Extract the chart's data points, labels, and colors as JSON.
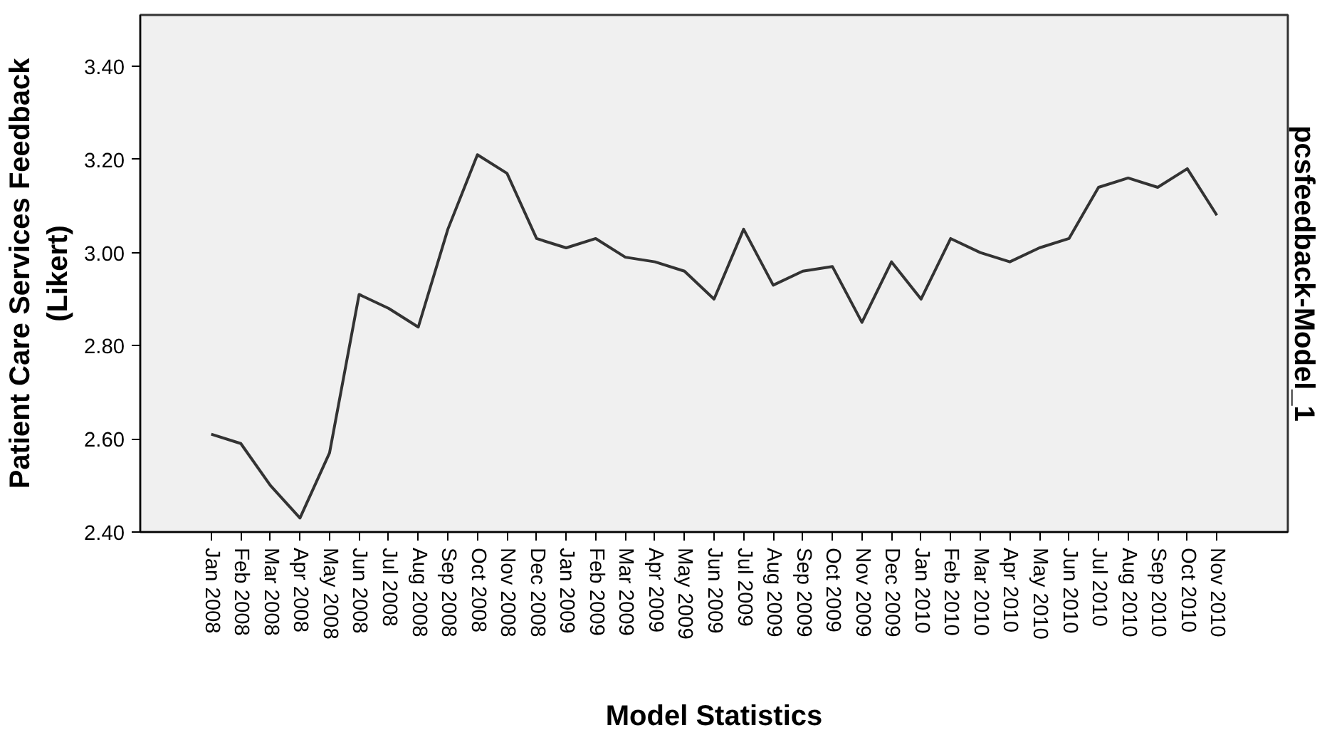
{
  "chart_data": {
    "type": "line",
    "xlabel": "Model Statistics",
    "ylabel": "Patient Care Services Feedback\n(Likert)",
    "y2label": "pcsfeedback-Model_1",
    "categories": [
      "Jan 2008",
      "Feb 2008",
      "Mar 2008",
      "Apr 2008",
      "May 2008",
      "Jun 2008",
      "Jul 2008",
      "Aug 2008",
      "Sep 2008",
      "Oct 2008",
      "Nov 2008",
      "Dec 2008",
      "Jan 2009",
      "Feb 2009",
      "Mar 2009",
      "Apr 2009",
      "May 2009",
      "Jun 2009",
      "Jul 2009",
      "Aug 2009",
      "Sep 2009",
      "Oct 2009",
      "Nov 2009",
      "Dec 2009",
      "Jan 2010",
      "Feb 2010",
      "Mar 2010",
      "Apr 2010",
      "May 2010",
      "Jun 2010",
      "Jul 2010",
      "Aug 2010",
      "Sep 2010",
      "Oct 2010",
      "Nov 2010"
    ],
    "series": [
      {
        "color": "#333333",
        "values": [
          2.61,
          2.59,
          2.5,
          2.43,
          2.57,
          2.91,
          2.88,
          2.84,
          3.05,
          3.21,
          3.17,
          3.03,
          3.01,
          3.03,
          2.99,
          2.98,
          2.96,
          2.9,
          3.05,
          2.93,
          2.96,
          2.97,
          2.85,
          2.98,
          2.9,
          3.03,
          3.0,
          2.98,
          3.01,
          3.03,
          3.14,
          3.16,
          3.14,
          3.18,
          3.08
        ]
      }
    ],
    "ylim": [
      2.4,
      3.51
    ],
    "yticks": [
      {
        "value": 2.4,
        "label": "2.40"
      },
      {
        "value": 2.6,
        "label": "2.60"
      },
      {
        "value": 2.8,
        "label": "2.80"
      },
      {
        "value": 3.0,
        "label": "3.00"
      },
      {
        "value": 3.2,
        "label": "3.20"
      },
      {
        "value": 3.4,
        "label": "3.40"
      }
    ],
    "grid": false,
    "marker": "none",
    "line_style": "solid"
  }
}
